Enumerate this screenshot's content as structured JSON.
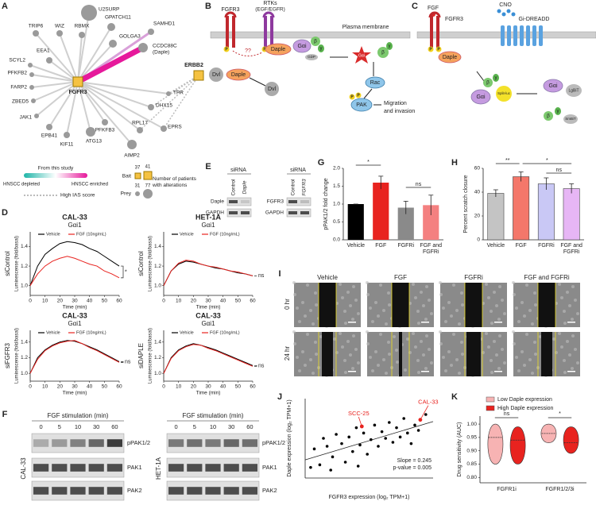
{
  "letters": [
    "A",
    "B",
    "C",
    "D",
    "E",
    "F",
    "G",
    "H",
    "I",
    "J",
    "K"
  ],
  "A": {
    "nodes": [
      "U2SURP",
      "TRIP6",
      "WIZ",
      "RBMX",
      "GPATCH11",
      "GOLGA3",
      "SAMHD1",
      "CCDC88C",
      "SCYL2",
      "EEA1",
      "PFKFB2",
      "FARP2",
      "ZBED5",
      "JAK1",
      "EPB41",
      "KIF11",
      "ATG13",
      "PFKFB3",
      "AIMP2",
      "RPL17",
      "EPRS",
      "DHX15",
      "TPR"
    ],
    "daple_alias": "(Daple)",
    "hub": "FGFR3",
    "partner": "ERBB2",
    "legend_study": "From this study",
    "depleted": "HNSCC depleted",
    "enriched": "HNSCC enriched",
    "ias": "High IAS score",
    "bait": "Bait",
    "prey": "Prey",
    "counts": [
      37,
      41,
      31,
      77
    ],
    "patients": "Number of patients with alterations"
  },
  "B": {
    "fgfr3": "FGFR3",
    "rtks": "RTKs",
    "rtks2": "(EGF/EGFR)",
    "membrane": "Plasma membrane",
    "daple": "Daple",
    "gai": "Gαi",
    "beta": "β",
    "gamma": "γ",
    "gdp": "GDP",
    "q": "??",
    "dvl": "Dvl",
    "p": "P",
    "rac": "Rac",
    "pak": "PAK",
    "migration": "Migration",
    "migration2": "and invasion"
  },
  "C": {
    "fgf": "FGF",
    "cno": "CNO",
    "dreadd": "Gi-DREADD",
    "fgfr3": "FGFR3",
    "daple": "Daple",
    "gai": "Gαi",
    "beta": "β",
    "gamma": "γ",
    "lgbit": "LgBiT",
    "splitluc": "Split-luc",
    "smbit": "SmBiT",
    "p": "P"
  },
  "E": {
    "sirna": "siRNA",
    "control": "Control",
    "daple": "Daple",
    "fgfr3": "FGFR3",
    "gapdh": "GAPDH"
  },
  "F": {
    "stim": "FGF stimulation (min)",
    "times": [
      0,
      5,
      10,
      30,
      60
    ],
    "rows": [
      "pPAK1/2",
      "PAK1",
      "PAK2"
    ],
    "cells": [
      "CAL-33",
      "HET-1A"
    ]
  },
  "I": {
    "cols": [
      "Vehicle",
      "FGF",
      "FGFRi",
      "FGF and FGFRi"
    ],
    "rows": [
      "0 hr",
      "24 hr"
    ]
  },
  "chart_data": [
    {
      "type": "line",
      "title": "CAL-33",
      "subtitle": "Gαi1",
      "row_label": "siControl",
      "ylabel": "Luminescense (fold/basal)",
      "xlabel": "Time (min)",
      "x": [
        0,
        5,
        10,
        15,
        20,
        25,
        30,
        35,
        40,
        45,
        50,
        55,
        60
      ],
      "series": [
        {
          "name": "Vehicle",
          "color": "#000000",
          "values": [
            1.0,
            1.2,
            1.32,
            1.38,
            1.43,
            1.45,
            1.44,
            1.42,
            1.38,
            1.35,
            1.3,
            1.25,
            1.2
          ]
        },
        {
          "name": "FGF (10ng/mL)",
          "color": "#e8231f",
          "values": [
            1.0,
            1.12,
            1.2,
            1.25,
            1.28,
            1.3,
            1.28,
            1.25,
            1.22,
            1.2,
            1.15,
            1.12,
            1.08
          ]
        }
      ],
      "xlim": [
        0,
        60
      ],
      "xticks": [
        0,
        10,
        20,
        30,
        40,
        50,
        60
      ],
      "ylim": [
        0.9,
        1.55
      ],
      "yticks": [
        {
          "value": 1,
          "label": "1.0"
        },
        {
          "value": 1.2,
          "label": "1.2"
        },
        {
          "value": 1.4,
          "label": "1.4"
        }
      ],
      "annotation": "*"
    },
    {
      "type": "line",
      "title": "HET-1A",
      "subtitle": "Gαi1",
      "row_label": "siControl",
      "ylabel": "Luminescense (fold/basal)",
      "xlabel": "Time (min)",
      "x": [
        0,
        5,
        10,
        15,
        20,
        25,
        30,
        35,
        40,
        45,
        50,
        55,
        60
      ],
      "series": [
        {
          "name": "Vehicle",
          "color": "#000000",
          "values": [
            1.0,
            1.15,
            1.22,
            1.25,
            1.24,
            1.22,
            1.2,
            1.18,
            1.17,
            1.15,
            1.13,
            1.12,
            1.1
          ]
        },
        {
          "name": "FGF (10ng/mL)",
          "color": "#e8231f",
          "values": [
            1.0,
            1.15,
            1.23,
            1.26,
            1.25,
            1.22,
            1.2,
            1.19,
            1.17,
            1.15,
            1.14,
            1.12,
            1.1
          ]
        }
      ],
      "xlim": [
        0,
        60
      ],
      "xticks": [
        0,
        10,
        20,
        30,
        40,
        50,
        60
      ],
      "ylim": [
        0.9,
        1.55
      ],
      "yticks": [
        {
          "value": 1,
          "label": "1.0"
        },
        {
          "value": 1.2,
          "label": "1.2"
        },
        {
          "value": 1.4,
          "label": "1.4"
        }
      ],
      "annotation": "ns"
    },
    {
      "type": "line",
      "title": "CAL-33",
      "subtitle": "Gαi1",
      "row_label": "siFGFR3",
      "ylabel": "Luminescense (fold/basal)",
      "xlabel": "Time (min)",
      "x": [
        0,
        5,
        10,
        15,
        20,
        25,
        30,
        35,
        40,
        45,
        50,
        55,
        60
      ],
      "series": [
        {
          "name": "Vehicle",
          "color": "#000000",
          "values": [
            1.0,
            1.2,
            1.3,
            1.36,
            1.4,
            1.42,
            1.41,
            1.38,
            1.34,
            1.3,
            1.25,
            1.2,
            1.15
          ]
        },
        {
          "name": "FGF (10ng/mL)",
          "color": "#e8231f",
          "values": [
            1.0,
            1.18,
            1.29,
            1.35,
            1.39,
            1.41,
            1.42,
            1.38,
            1.33,
            1.29,
            1.24,
            1.19,
            1.14
          ]
        }
      ],
      "xlim": [
        0,
        60
      ],
      "xticks": [
        0,
        10,
        20,
        30,
        40,
        50,
        60
      ],
      "ylim": [
        0.9,
        1.55
      ],
      "yticks": [
        {
          "value": 1,
          "label": "1.0"
        },
        {
          "value": 1.2,
          "label": "1.2"
        },
        {
          "value": 1.4,
          "label": "1.4"
        }
      ],
      "annotation": "ns"
    },
    {
      "type": "line",
      "title": "CAL-33",
      "subtitle": "Gαi1",
      "row_label": "siDAPLE",
      "ylabel": "Luminescense (fold/basal)",
      "xlabel": "Time (min)",
      "x": [
        0,
        5,
        10,
        15,
        20,
        25,
        30,
        35,
        40,
        45,
        50,
        55,
        60
      ],
      "series": [
        {
          "name": "Vehicle",
          "color": "#000000",
          "values": [
            1.0,
            1.2,
            1.3,
            1.35,
            1.38,
            1.36,
            1.33,
            1.3,
            1.26,
            1.22,
            1.18,
            1.14,
            1.1
          ]
        },
        {
          "name": "FGF (10ng/mL)",
          "color": "#e8231f",
          "values": [
            1.0,
            1.19,
            1.29,
            1.34,
            1.37,
            1.36,
            1.32,
            1.29,
            1.25,
            1.21,
            1.17,
            1.13,
            1.09
          ]
        }
      ],
      "xlim": [
        0,
        60
      ],
      "xticks": [
        0,
        10,
        20,
        30,
        40,
        50,
        60
      ],
      "ylim": [
        0.9,
        1.55
      ],
      "yticks": [
        {
          "value": 1,
          "label": "1.0"
        },
        {
          "value": 1.2,
          "label": "1.2"
        },
        {
          "value": 1.4,
          "label": "1.4"
        }
      ],
      "annotation": "ns"
    },
    {
      "type": "bar",
      "ylabel": "pPAK1/2 fold change",
      "categories": [
        "Vehicle",
        "FGF",
        "FGFRi",
        "FGF and FGFRi"
      ],
      "values": [
        1.0,
        1.6,
        0.9,
        0.97
      ],
      "errors": [
        0,
        0.18,
        0.18,
        0.28
      ],
      "colors": [
        "#000000",
        "#e8231f",
        "#8a8a8a",
        "#f48080"
      ],
      "ylim": [
        0,
        2
      ],
      "yticks": [
        {
          "value": 0,
          "label": "0.0"
        },
        {
          "value": 0.5,
          "label": "0.5"
        },
        {
          "value": 1,
          "label": "1.0"
        },
        {
          "value": 1.5,
          "label": "1.5"
        },
        {
          "value": 2,
          "label": "2.0"
        }
      ],
      "annotations": [
        "*",
        "ns"
      ]
    },
    {
      "type": "bar",
      "ylabel": "Percent scratch closure",
      "categories": [
        "Vehicle",
        "FGF",
        "FGFRi",
        "FGF and FGFRi"
      ],
      "values": [
        39,
        53,
        47,
        43
      ],
      "errors": [
        3,
        4,
        5,
        4
      ],
      "colors": [
        "#c4c4c4",
        "#f4776a",
        "#c9c8f5",
        "#e7b6f5"
      ],
      "ylim": [
        0,
        60
      ],
      "yticks": [
        0,
        20,
        40,
        60
      ],
      "annotations": [
        "**",
        "*",
        "ns"
      ]
    },
    {
      "type": "scatter",
      "xlabel": "FGFR3 expression (log₂ TPM+1)",
      "ylabel": "Daple expression (log₂ TPM+1)",
      "x": [
        0.5,
        0.8,
        1.0,
        1.2,
        1.5,
        1.7,
        2.0,
        2.2,
        2.4,
        2.6,
        2.8,
        3.0,
        3.2,
        3.4,
        3.6,
        3.8,
        4.0,
        4.2,
        4.4,
        4.6,
        4.8,
        5.0,
        5.2,
        5.4,
        5.6,
        5.8,
        6.0,
        6.2,
        6.6,
        0.3,
        1.4,
        2.9
      ],
      "values": [
        2.2,
        1.0,
        3.0,
        2.4,
        1.6,
        3.3,
        2.6,
        1.2,
        3.1,
        2.0,
        3.8,
        2.5,
        3.4,
        1.8,
        2.9,
        4.0,
        2.4,
        3.5,
        3.0,
        4.2,
        2.7,
        3.8,
        3.1,
        4.5,
        3.4,
        2.6,
        4.0,
        3.6,
        4.8,
        0.8,
        0.6,
        0.9
      ],
      "color": "#000000",
      "highlight_x": [
        3.1,
        6.3
      ],
      "highlight_values": [
        3.9,
        4.4
      ],
      "highlight_color": "#e8231f",
      "labels": [
        "SCC-25",
        "CAL-33"
      ],
      "stats": [
        "Slope = 0.245",
        "p-value = 0.005"
      ],
      "xlim": [
        0,
        7
      ],
      "ylim": [
        0,
        6
      ]
    },
    {
      "type": "violin",
      "ylabel": "Drug sensitivity (AUC)",
      "categories": [
        "FGFR1i",
        "FGFR1/2/3i"
      ],
      "series": [
        {
          "name": "Low Daple expression",
          "color": "#f7b3b3",
          "min": [
            0.85,
            0.93
          ],
          "median": [
            0.95,
            0.965
          ],
          "max": [
            1.0,
            1.0
          ]
        },
        {
          "name": "High Daple expression",
          "color": "#e8231f",
          "min": [
            0.85,
            0.89
          ],
          "median": [
            0.94,
            0.93
          ],
          "max": [
            0.99,
            0.99
          ]
        }
      ],
      "ylim": [
        0.78,
        1.03
      ],
      "yticks": [
        {
          "value": 0.8,
          "label": "0.80"
        },
        {
          "value": 0.85,
          "label": "0.85"
        },
        {
          "value": 0.9,
          "label": "0.90"
        },
        {
          "value": 0.95,
          "label": "0.95"
        },
        {
          "value": 1,
          "label": "1.00"
        }
      ],
      "annotations": [
        "ns",
        "*"
      ]
    }
  ]
}
